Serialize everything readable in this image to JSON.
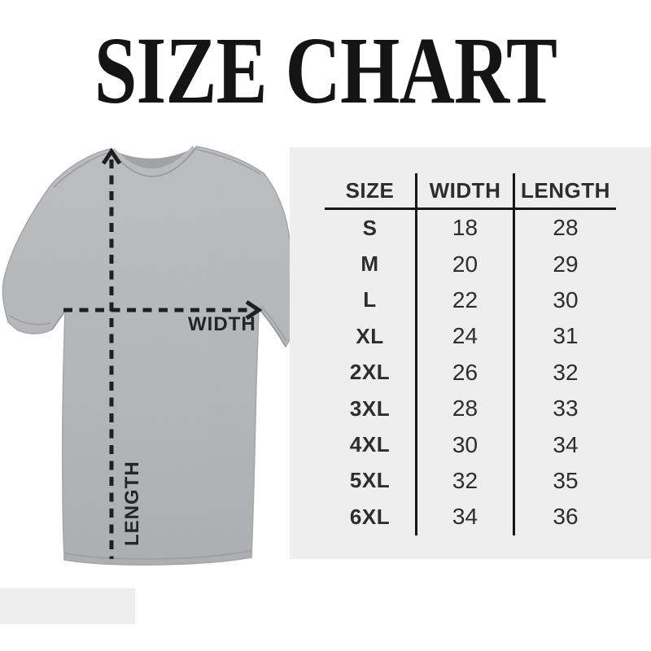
{
  "title": "SIZE CHART",
  "measurement_labels": {
    "width": "WIDTH",
    "length": "LENGTH"
  },
  "chart_data": {
    "type": "table",
    "title": "SIZE CHART",
    "columns": [
      "SIZE",
      "WIDTH",
      "LENGTH"
    ],
    "rows": [
      [
        "S",
        18,
        28
      ],
      [
        "M",
        20,
        29
      ],
      [
        "L",
        22,
        30
      ],
      [
        "XL",
        24,
        31
      ],
      [
        "2XL",
        26,
        32
      ],
      [
        "3XL",
        28,
        33
      ],
      [
        "4XL",
        30,
        34
      ],
      [
        "5XL",
        32,
        35
      ],
      [
        "6XL",
        34,
        36
      ]
    ],
    "annotations": [
      "WIDTH arrow across chest",
      "LENGTH arrow down body"
    ],
    "legend_position": "none",
    "grid": "column dividers and header underline only"
  },
  "colors": {
    "background": "#ffffff",
    "panel": "#eeeeef",
    "fabric": "#b4b6b8",
    "rule": "#161616",
    "arrow": "#1f1f1f",
    "text": "#2d2d2d",
    "title_text": "#141414",
    "accent_block": "#ededee"
  }
}
